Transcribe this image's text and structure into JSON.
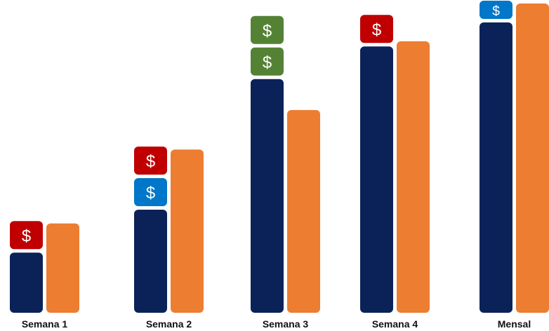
{
  "chart_data": {
    "type": "bar",
    "categories": [
      "Semana 1",
      "Semana 2",
      "Semana 3",
      "Semana 4",
      "Mensal"
    ],
    "series": [
      {
        "values": [
          1.75,
          3.0,
          6.8,
          7.75,
          8.45
        ]
      },
      {
        "values": [
          2.6,
          4.75,
          5.9,
          7.9,
          9.0
        ]
      }
    ],
    "tokens": [
      [
        "red"
      ],
      [
        "blue",
        "red"
      ],
      [
        "green",
        "green"
      ],
      [
        "red"
      ],
      [
        "blue",
        "blue"
      ]
    ],
    "token_symbol": "$",
    "token_colors": {
      "red": "#c00000",
      "blue": "#0077c8",
      "green": "#548235"
    },
    "series_colors": [
      "#0b2259",
      "#ed7d31"
    ],
    "ylim": [
      0,
      9
    ]
  }
}
